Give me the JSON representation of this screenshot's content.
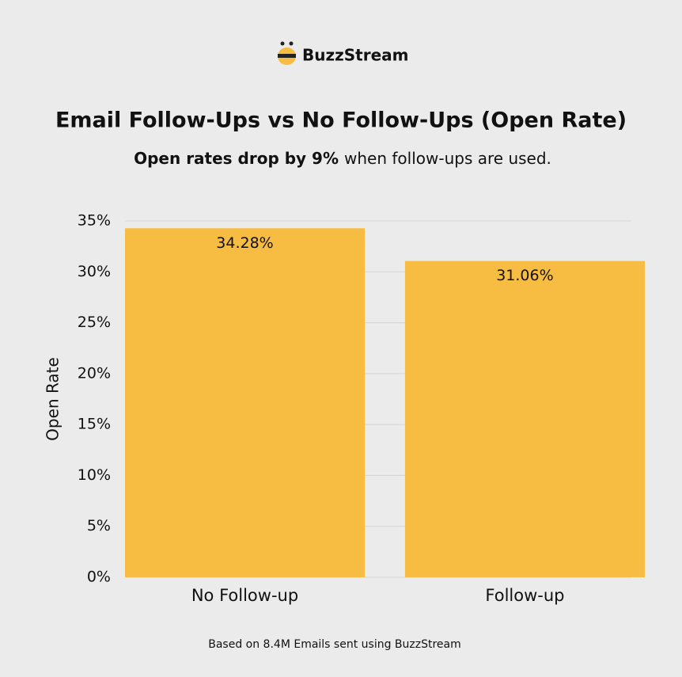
{
  "brand": "BuzzStream",
  "chart_data": {
    "type": "bar",
    "title": "Email Follow-Ups vs No Follow-Ups (Open Rate)",
    "subtitle": {
      "emphasis": "Open rates drop by 9%",
      "text": "when follow-ups are used."
    },
    "y_label": "Open Rate",
    "categories": [
      "No Follow-up",
      "Follow-up"
    ],
    "values": [
      34.28,
      31.06
    ],
    "value_labels": [
      "34.28%",
      "31.06%"
    ],
    "color": "#f7bc42",
    "ylim": [
      0,
      35
    ],
    "yticks": [
      {
        "value": 0,
        "label": "0%"
      },
      {
        "value": 5,
        "label": "5%"
      },
      {
        "value": 10,
        "label": "10%"
      },
      {
        "value": 15,
        "label": "15%"
      },
      {
        "value": 20,
        "label": "20%"
      },
      {
        "value": 25,
        "label": "25%"
      },
      {
        "value": 30,
        "label": "30%"
      },
      {
        "value": 35,
        "label": "35%"
      }
    ],
    "grid": true,
    "footnote": "Based on 8.4M Emails sent using BuzzStream"
  }
}
